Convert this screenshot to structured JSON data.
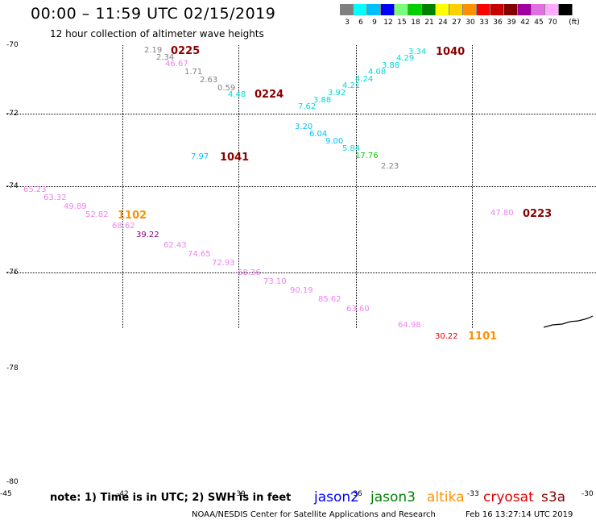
{
  "title": "00:00 – 11:59 UTC 02/15/2019",
  "subtitle": "12 hour collection of altimeter wave heights",
  "scale": {
    "unit": "(ft)",
    "items": [
      {
        "label": "3",
        "color": "#808080"
      },
      {
        "label": "6",
        "color": "#00ffff"
      },
      {
        "label": "9",
        "color": "#00bfff"
      },
      {
        "label": "12",
        "color": "#0000ff"
      },
      {
        "label": "15",
        "color": "#7cfc7c"
      },
      {
        "label": "18",
        "color": "#00d000"
      },
      {
        "label": "21",
        "color": "#008000"
      },
      {
        "label": "24",
        "color": "#ffff00"
      },
      {
        "label": "27",
        "color": "#ffd000"
      },
      {
        "label": "30",
        "color": "#ff9000"
      },
      {
        "label": "33",
        "color": "#ff0000"
      },
      {
        "label": "36",
        "color": "#c80000"
      },
      {
        "label": "39",
        "color": "#800000"
      },
      {
        "label": "42",
        "color": "#a000a0"
      },
      {
        "label": "45",
        "color": "#e070e0"
      },
      {
        "label": "70",
        "color": "#ffaaff"
      },
      {
        "label": "",
        "color": "#000000"
      }
    ]
  },
  "lat_labels": [
    "-70",
    "-72",
    "-74",
    "-76",
    "-78",
    "-80"
  ],
  "lon_labels": [
    "-45",
    "-42",
    "-39",
    "-36",
    "-33",
    "-30"
  ],
  "passes": [
    {
      "label": "0225",
      "color": "#8b0000"
    },
    {
      "label": "0224",
      "color": "#8b0000"
    },
    {
      "label": "1040",
      "color": "#8b0000"
    },
    {
      "label": "1041",
      "color": "#8b0000"
    },
    {
      "label": "1102",
      "color": "#ff9000"
    },
    {
      "label": "0223",
      "color": "#8b0000"
    },
    {
      "label": "1101",
      "color": "#ff9000"
    }
  ],
  "observations": [
    {
      "v": "2.19",
      "c": "#808080"
    },
    {
      "v": "2.34",
      "c": "#808080"
    },
    {
      "v": "46.67",
      "c": "#ee82ee"
    },
    {
      "v": "1.71",
      "c": "#808080"
    },
    {
      "v": "2.63",
      "c": "#808080"
    },
    {
      "v": "0.59",
      "c": "#808080"
    },
    {
      "v": "4.48",
      "c": "#00d8d8"
    },
    {
      "v": "3.34",
      "c": "#00d8d8"
    },
    {
      "v": "4.29",
      "c": "#00d8d8"
    },
    {
      "v": "3.88",
      "c": "#00d8d8"
    },
    {
      "v": "4.08",
      "c": "#00d8d8"
    },
    {
      "v": "4.24",
      "c": "#00d8d8"
    },
    {
      "v": "4.21",
      "c": "#00d8d8"
    },
    {
      "v": "3.92",
      "c": "#00d8d8"
    },
    {
      "v": "3.88",
      "c": "#00d8d8"
    },
    {
      "v": "7.62",
      "c": "#00d8d8"
    },
    {
      "v": "3.20",
      "c": "#00bfff"
    },
    {
      "v": "6.04",
      "c": "#00bfff"
    },
    {
      "v": "9.00",
      "c": "#00bfff"
    },
    {
      "v": "5.84",
      "c": "#00d8d8"
    },
    {
      "v": "17.76",
      "c": "#00d000"
    },
    {
      "v": "2.23",
      "c": "#808080"
    },
    {
      "v": "7.97",
      "c": "#00bfff"
    },
    {
      "v": "65.23",
      "c": "#ee82ee"
    },
    {
      "v": "63.32",
      "c": "#ee82ee"
    },
    {
      "v": "49.89",
      "c": "#ee82ee"
    },
    {
      "v": "52.82",
      "c": "#ee82ee"
    },
    {
      "v": "68.62",
      "c": "#ee82ee"
    },
    {
      "v": "39.22",
      "c": "#800080"
    },
    {
      "v": "62.43",
      "c": "#ee82ee"
    },
    {
      "v": "74.65",
      "c": "#ee82ee"
    },
    {
      "v": "72.93",
      "c": "#ee82ee"
    },
    {
      "v": "68.36",
      "c": "#ee82ee"
    },
    {
      "v": "73.10",
      "c": "#ee82ee"
    },
    {
      "v": "90.19",
      "c": "#ee82ee"
    },
    {
      "v": "85.62",
      "c": "#ee82ee"
    },
    {
      "v": "63.60",
      "c": "#ee82ee"
    },
    {
      "v": "64.98",
      "c": "#ee82ee"
    },
    {
      "v": "30.22",
      "c": "#e00000"
    },
    {
      "v": "47.80",
      "c": "#ee82ee"
    }
  ],
  "note": "note: 1) Time is in UTC; 2) SWH is in feet",
  "satellites": [
    {
      "name": "jason2",
      "color": "#0000ff"
    },
    {
      "name": "jason3",
      "color": "#008000"
    },
    {
      "name": "altika",
      "color": "#ff9000"
    },
    {
      "name": "cryosat",
      "color": "#e00000"
    },
    {
      "name": "s3a",
      "color": "#8b0000"
    }
  ],
  "credit": "NOAA/NESDIS Center for Satellite Applications and Research",
  "timestamp": "Feb 16 13:27:14 UTC 2019"
}
